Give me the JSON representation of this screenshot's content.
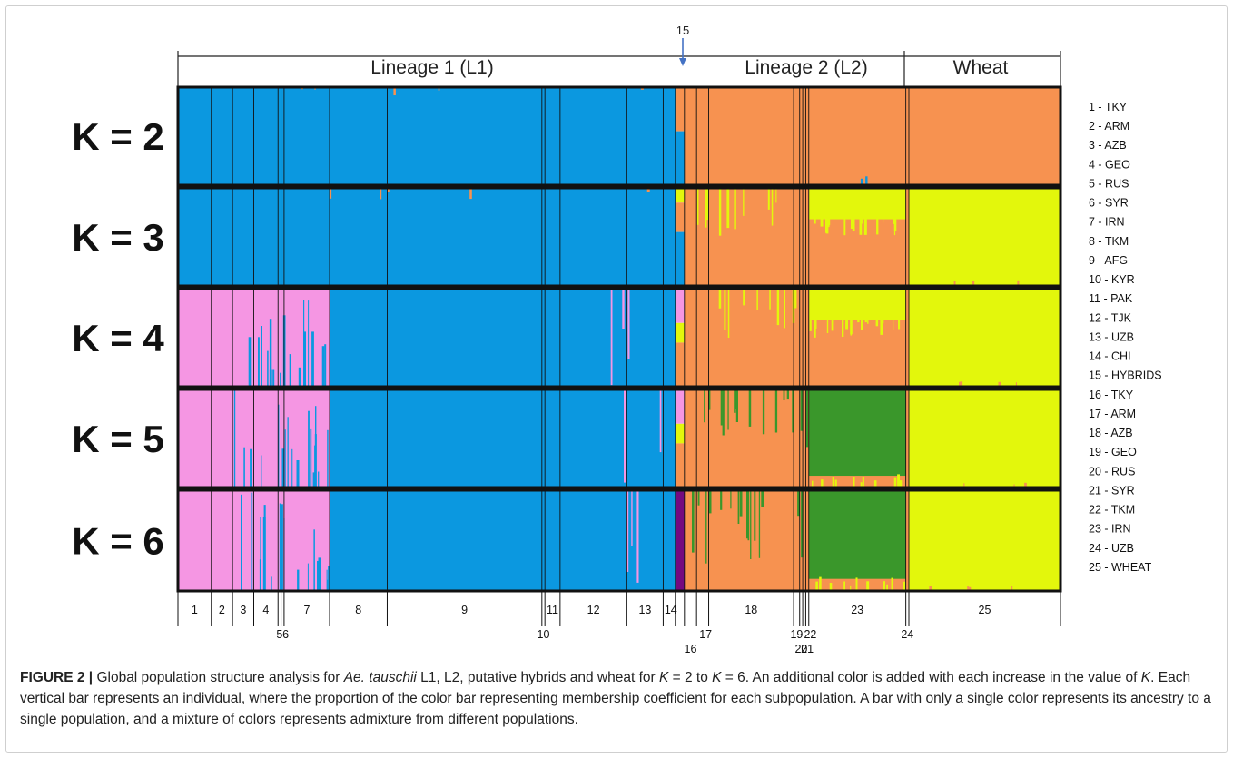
{
  "chart_data": {
    "type": "bar",
    "subtype": "stacked-admixture",
    "headers": {
      "lineage1": "Lineage 1 (L1)",
      "lineage2": "Lineage 2 (L2)",
      "wheat": "Wheat",
      "hybrid_marker": "15"
    },
    "panels": [
      "K = 2",
      "K = 3",
      "K = 4",
      "K = 5",
      "K = 6"
    ],
    "colors": {
      "blue": "#0b98e0",
      "orange": "#f79250",
      "yellow": "#e3f70c",
      "pink": "#f596e3",
      "green": "#3a972b",
      "purple": "#75097f"
    },
    "groups": [
      {
        "label": "1",
        "start": 0,
        "end": 11
      },
      {
        "label": "2",
        "start": 11,
        "end": 18
      },
      {
        "label": "3",
        "start": 18,
        "end": 25
      },
      {
        "label": "4",
        "start": 25,
        "end": 33
      },
      {
        "label": "5",
        "start": 33,
        "end": 34
      },
      {
        "label": "6",
        "start": 34,
        "end": 35
      },
      {
        "label": "7",
        "start": 35,
        "end": 50
      },
      {
        "label": "8",
        "start": 50,
        "end": 69
      },
      {
        "label": "9",
        "start": 69,
        "end": 120
      },
      {
        "label": "10",
        "start": 120,
        "end": 121
      },
      {
        "label": "11",
        "start": 121,
        "end": 126
      },
      {
        "label": "12",
        "start": 126,
        "end": 148
      },
      {
        "label": "13",
        "start": 148,
        "end": 160
      },
      {
        "label": "14",
        "start": 160,
        "end": 164
      },
      {
        "label": "15",
        "start": 164,
        "end": 167
      },
      {
        "label": "16",
        "start": 167,
        "end": 171
      },
      {
        "label": "17",
        "start": 171,
        "end": 175
      },
      {
        "label": "18",
        "start": 175,
        "end": 203
      },
      {
        "label": "19",
        "start": 203,
        "end": 205
      },
      {
        "label": "20",
        "start": 205,
        "end": 206
      },
      {
        "label": "21",
        "start": 206,
        "end": 207
      },
      {
        "label": "22",
        "start": 207,
        "end": 208
      },
      {
        "label": "23",
        "start": 208,
        "end": 240
      },
      {
        "label": "24",
        "start": 240,
        "end": 241
      },
      {
        "label": "25",
        "start": 241,
        "end": 291
      }
    ],
    "total_individuals": 291,
    "group_number_labels": [
      {
        "text": "1",
        "row": 1,
        "at": 5.5
      },
      {
        "text": "2",
        "row": 1,
        "at": 14.5
      },
      {
        "text": "3",
        "row": 1,
        "at": 21.5
      },
      {
        "text": "4",
        "row": 1,
        "at": 29
      },
      {
        "text": "7",
        "row": 1,
        "at": 42.5
      },
      {
        "text": "8",
        "row": 1,
        "at": 59.5
      },
      {
        "text": "9",
        "row": 1,
        "at": 94.5
      },
      {
        "text": "11",
        "row": 1,
        "at": 123.5
      },
      {
        "text": "12",
        "row": 1,
        "at": 137
      },
      {
        "text": "13",
        "row": 1,
        "at": 154
      },
      {
        "text": "14",
        "row": 1,
        "at": 162.5
      },
      {
        "text": "18",
        "row": 1,
        "at": 189
      },
      {
        "text": "23",
        "row": 1,
        "at": 224
      },
      {
        "text": "25",
        "row": 1,
        "at": 266
      },
      {
        "text": "5",
        "row": 2,
        "at": 33.5
      },
      {
        "text": "6",
        "row": 2,
        "at": 35.5
      },
      {
        "text": "10",
        "row": 2,
        "at": 120.5
      },
      {
        "text": "17",
        "row": 2,
        "at": 174
      },
      {
        "text": "19",
        "row": 2,
        "at": 204
      },
      {
        "text": "22",
        "row": 2,
        "at": 208.5
      },
      {
        "text": "24",
        "row": 2,
        "at": 240.5
      },
      {
        "text": "16",
        "row": 3,
        "at": 169
      },
      {
        "text": "20",
        "row": 3,
        "at": 205.5
      },
      {
        "text": "21",
        "row": 3,
        "at": 207.5
      }
    ],
    "legend": [
      "1 - TKY",
      "2 - ARM",
      "3 - AZB",
      "4 - GEO",
      "5 - RUS",
      "6 - SYR",
      "7 - IRN",
      "8 - TKM",
      "9 - AFG",
      "10 - KYR",
      "11 - PAK",
      "12 - TJK",
      "13 - UZB",
      "14 - CHI",
      "15 - HYBRIDS",
      "16 - TKY",
      "17 - ARM",
      "18 - AZB",
      "19 - GEO",
      "20 - RUS",
      "21 - SYR",
      "22 - TKM",
      "23 - IRN",
      "24 - UZB",
      "25 - WHEAT"
    ]
  },
  "caption": {
    "label": "FIGURE 2 |",
    "t1": " Global population structure analysis for ",
    "species": "Ae. tauschii",
    "t2": " L1, L2, putative hybrids and wheat for ",
    "k1": "K",
    "t3": " = 2 to ",
    "k2": "K",
    "t4": " = 6. An additional color is added with each increase in the value of ",
    "k3": "K",
    "t5": ". Each vertical bar represents an individual, where the proportion of the color bar representing membership coefficient for each subpopulation. A bar with only a single color represents its ancestry to a single population, and a mixture of colors represents admixture from different populations."
  }
}
